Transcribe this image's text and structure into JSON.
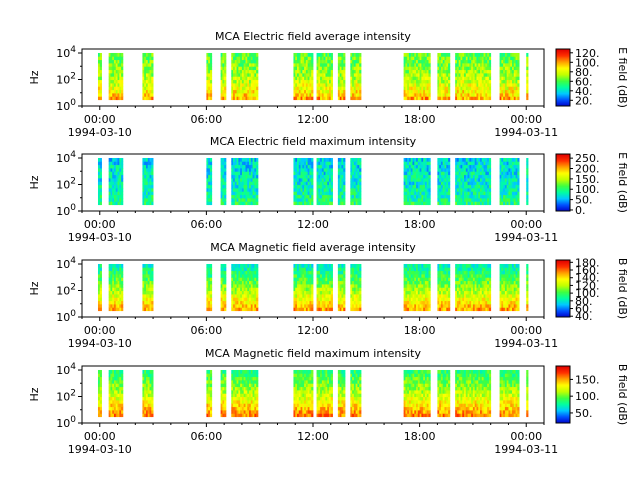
{
  "chart_data": [
    {
      "type": "heatmap",
      "title": "MCA  Electric field average intensity",
      "ylabel": "Hz",
      "yscale": "log",
      "ylim": [
        1,
        20000
      ],
      "ytick_labels": [
        "10^0",
        "10^2",
        "10^4"
      ],
      "xlim_hours": [
        -1,
        25
      ],
      "xtick_labels": [
        "00:00",
        "06:00",
        "12:00",
        "18:00",
        "00:00"
      ],
      "xtick_date_labels": [
        "1994-03-10",
        "",
        "",
        "",
        "1994-03-11"
      ],
      "colorbar_label": "E field (dB)",
      "colorbar_ticks": [
        20,
        40,
        60,
        80,
        100,
        120
      ],
      "colorbar_tick_labels": [
        "20.",
        "40.",
        "60.",
        "80.",
        "100.",
        "120."
      ],
      "colorbar_range": [
        8,
        128
      ],
      "colormap": [
        "#0000c8",
        "#0050ff",
        "#00c8ff",
        "#00ffa0",
        "#40ff40",
        "#c0ff00",
        "#ffff00",
        "#ffa000",
        "#ff3000",
        "#e00000"
      ],
      "coverage_hours": [
        [
          -0.1,
          0.1
        ],
        [
          0.5,
          1.3
        ],
        [
          2.4,
          3.0
        ],
        [
          6.0,
          6.3
        ],
        [
          6.8,
          7.1
        ],
        [
          7.4,
          8.9
        ],
        [
          10.9,
          12.0
        ],
        [
          12.2,
          13.1
        ],
        [
          13.4,
          13.8
        ],
        [
          14.1,
          14.7
        ],
        [
          17.1,
          18.6
        ],
        [
          19.0,
          19.7
        ],
        [
          20.0,
          22.0
        ],
        [
          22.5,
          23.6
        ],
        [
          24.0,
          24.1
        ]
      ],
      "intensity_profile": [
        [
          1,
          0.9
        ],
        [
          10,
          0.68
        ],
        [
          100,
          0.56
        ],
        [
          1000,
          0.5
        ],
        [
          10000,
          0.44
        ],
        [
          20000,
          0.42
        ]
      ],
      "intensity_noise": 0.12
    },
    {
      "type": "heatmap",
      "title": "MCA  Electric field maximum intensity",
      "ylabel": "Hz",
      "yscale": "log",
      "ylim": [
        1,
        20000
      ],
      "ytick_labels": [
        "10^0",
        "10^2",
        "10^4"
      ],
      "xlim_hours": [
        -1,
        25
      ],
      "xtick_labels": [
        "00:00",
        "06:00",
        "12:00",
        "18:00",
        "00:00"
      ],
      "xtick_date_labels": [
        "1994-03-10",
        "",
        "",
        "",
        "1994-03-11"
      ],
      "colorbar_label": "E field (dB)",
      "colorbar_ticks": [
        0,
        50,
        100,
        150,
        200,
        250
      ],
      "colorbar_tick_labels": [
        "0.",
        "50.",
        "100.",
        "150.",
        "200.",
        "250."
      ],
      "colorbar_range": [
        -5,
        270
      ],
      "colormap": [
        "#0000c8",
        "#0050ff",
        "#00c8ff",
        "#00ffa0",
        "#40ff40",
        "#c0ff00",
        "#ffff00",
        "#ffa000",
        "#ff3000",
        "#e00000"
      ],
      "coverage_hours": [
        [
          -0.1,
          0.1
        ],
        [
          0.5,
          1.3
        ],
        [
          2.4,
          3.0
        ],
        [
          6.0,
          6.3
        ],
        [
          6.8,
          7.1
        ],
        [
          7.4,
          8.9
        ],
        [
          10.9,
          12.0
        ],
        [
          12.2,
          13.1
        ],
        [
          13.4,
          13.8
        ],
        [
          14.1,
          14.7
        ],
        [
          17.1,
          18.6
        ],
        [
          19.0,
          19.7
        ],
        [
          20.0,
          22.0
        ],
        [
          22.5,
          23.6
        ],
        [
          24.0,
          24.1
        ]
      ],
      "intensity_profile": [
        [
          1,
          0.42
        ],
        [
          10,
          0.34
        ],
        [
          100,
          0.3
        ],
        [
          1000,
          0.28
        ],
        [
          10000,
          0.26
        ],
        [
          20000,
          0.25
        ]
      ],
      "intensity_noise": 0.12
    },
    {
      "type": "heatmap",
      "title": "MCA  Magnetic field average intensity",
      "ylabel": "Hz",
      "yscale": "log",
      "ylim": [
        1,
        20000
      ],
      "ytick_labels": [
        "10^0",
        "10^2",
        "10^4"
      ],
      "xlim_hours": [
        -1,
        25
      ],
      "xtick_labels": [
        "00:00",
        "06:00",
        "12:00",
        "18:00",
        "00:00"
      ],
      "xtick_date_labels": [
        "1994-03-10",
        "",
        "",
        "",
        "1994-03-11"
      ],
      "colorbar_label": "B field (dB)",
      "colorbar_ticks": [
        40,
        60,
        80,
        100,
        120,
        140,
        160,
        180
      ],
      "colorbar_tick_labels": [
        "40.",
        "60.",
        "80.",
        "100.",
        "120.",
        "140.",
        "160.",
        "180."
      ],
      "colorbar_range": [
        38,
        186
      ],
      "colormap": [
        "#0000c8",
        "#0050ff",
        "#00c8ff",
        "#00ffa0",
        "#40ff40",
        "#c0ff00",
        "#ffff00",
        "#ffa000",
        "#ff3000",
        "#e00000"
      ],
      "coverage_hours": [
        [
          -0.1,
          0.1
        ],
        [
          0.5,
          1.3
        ],
        [
          2.4,
          3.0
        ],
        [
          6.0,
          6.3
        ],
        [
          6.8,
          7.1
        ],
        [
          7.4,
          8.9
        ],
        [
          10.9,
          12.0
        ],
        [
          12.2,
          13.1
        ],
        [
          13.4,
          13.8
        ],
        [
          14.1,
          14.7
        ],
        [
          17.1,
          18.6
        ],
        [
          19.0,
          19.7
        ],
        [
          20.0,
          22.0
        ],
        [
          22.5,
          23.6
        ],
        [
          24.0,
          24.1
        ]
      ],
      "intensity_profile": [
        [
          1,
          0.88
        ],
        [
          10,
          0.7
        ],
        [
          100,
          0.55
        ],
        [
          1000,
          0.42
        ],
        [
          10000,
          0.3
        ],
        [
          20000,
          0.27
        ]
      ],
      "intensity_noise": 0.1
    },
    {
      "type": "heatmap",
      "title": "MCA  Magnetic field maximum intensity",
      "ylabel": "Hz",
      "yscale": "log",
      "ylim": [
        1,
        20000
      ],
      "ytick_labels": [
        "10^0",
        "10^2",
        "10^4"
      ],
      "xlim_hours": [
        -1,
        25
      ],
      "xtick_labels": [
        "00:00",
        "06:00",
        "12:00",
        "18:00",
        "00:00"
      ],
      "xtick_date_labels": [
        "1994-03-10",
        "",
        "",
        "",
        "1994-03-11"
      ],
      "colorbar_label": "B field (dB)",
      "colorbar_ticks": [
        50,
        100,
        150
      ],
      "colorbar_tick_labels": [
        "50.",
        "100.",
        "150."
      ],
      "colorbar_range": [
        20,
        190
      ],
      "colormap": [
        "#0000c8",
        "#0050ff",
        "#00c8ff",
        "#00ffa0",
        "#40ff40",
        "#c0ff00",
        "#ffff00",
        "#ffa000",
        "#ff3000",
        "#e00000"
      ],
      "coverage_hours": [
        [
          -0.1,
          0.1
        ],
        [
          0.5,
          1.3
        ],
        [
          2.4,
          3.0
        ],
        [
          6.0,
          6.3
        ],
        [
          6.8,
          7.1
        ],
        [
          7.4,
          8.9
        ],
        [
          10.9,
          12.0
        ],
        [
          12.2,
          13.1
        ],
        [
          13.4,
          13.8
        ],
        [
          14.1,
          14.7
        ],
        [
          17.1,
          18.6
        ],
        [
          19.0,
          19.7
        ],
        [
          20.0,
          22.0
        ],
        [
          22.5,
          23.6
        ],
        [
          24.0,
          24.1
        ]
      ],
      "intensity_profile": [
        [
          1,
          0.9
        ],
        [
          10,
          0.75
        ],
        [
          100,
          0.6
        ],
        [
          1000,
          0.48
        ],
        [
          10000,
          0.38
        ],
        [
          20000,
          0.36
        ]
      ],
      "intensity_noise": 0.1
    }
  ]
}
